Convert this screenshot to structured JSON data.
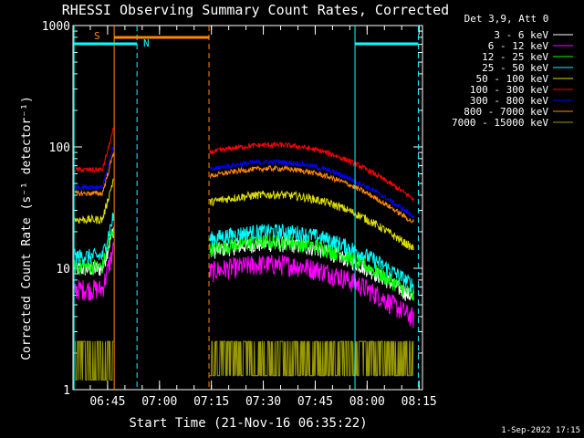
{
  "chart_data": {
    "type": "line",
    "title": "RHESSI Observing Summary Count Rates, Corrected",
    "xlabel": "Start Time (21-Nov-16 06:35:22)",
    "ylabel": "Corrected Count Rate (s⁻¹ detector⁻¹)",
    "yscale": "log",
    "ylim": [
      1,
      1000
    ],
    "xlim_minutes_after_0635": [
      0,
      101
    ],
    "x_ticks": [
      {
        "label": "06:45",
        "minutes": 10
      },
      {
        "label": "07:00",
        "minutes": 25
      },
      {
        "label": "07:15",
        "minutes": 40
      },
      {
        "label": "07:30",
        "minutes": 55
      },
      {
        "label": "07:45",
        "minutes": 70
      },
      {
        "label": "08:00",
        "minutes": 85
      },
      {
        "label": "08:15",
        "minutes": 100
      }
    ],
    "y_ticks": [
      {
        "label": "1",
        "value": 1
      },
      {
        "label": "10",
        "value": 10
      },
      {
        "label": "100",
        "value": 100
      },
      {
        "label": "1000",
        "value": 1000
      }
    ],
    "legend_title": "Det 3,9, Att 0",
    "legend_placement": "right",
    "series": [
      {
        "name": "3 - 6 keV",
        "color": "#ffffff",
        "plateau": 11,
        "noise": 0.15
      },
      {
        "name": "6 - 12 keV",
        "color": "#ff00ff",
        "plateau": 7.5,
        "noise": 0.2
      },
      {
        "name": "12 - 25 keV",
        "color": "#00ff00",
        "plateau": 11.5,
        "noise": 0.15
      },
      {
        "name": "25 - 50 keV",
        "color": "#00ffff",
        "plateau": 14,
        "noise": 0.15
      },
      {
        "name": "50 - 100 keV",
        "color": "#dddd00",
        "plateau": 28,
        "noise": 0.08
      },
      {
        "name": "100 - 300 keV",
        "color": "#ff0000",
        "plateau": 72,
        "noise": 0.05
      },
      {
        "name": "300 - 800 keV",
        "color": "#0000ff",
        "plateau": 52,
        "noise": 0.05
      },
      {
        "name": "800 - 7000 keV",
        "color": "#ff8800",
        "plateau": 46,
        "noise": 0.05
      },
      {
        "name": "7000 - 15000 keV",
        "color": "#999900",
        "plateau": 1.8,
        "noise": 0.3
      }
    ],
    "annotations": [
      {
        "label": "S",
        "color": "#ff8800"
      },
      {
        "label": "N",
        "color": "#00ffff"
      }
    ],
    "footer": "1-Sep-2022 17:15"
  }
}
